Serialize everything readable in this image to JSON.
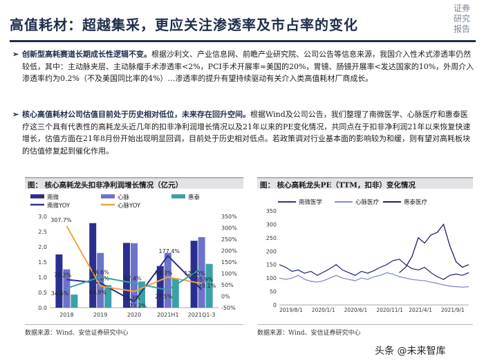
{
  "header": {
    "title": "高值耗材：超越集采，更应关注渗透率及市占率的变化",
    "brand_lines": [
      "证券",
      "研究",
      "报告"
    ]
  },
  "bullets": [
    {
      "lead": "创新型高耗赛道长期成长性逻辑不变。",
      "body": "根据沙利文、产业信息网、前瞻产业研究院、公司公告等信息来源，我国介入性术式渗透率仍然较低，其中：主动脉夹层、主动脉瘤手术渗透率<2%，PCI手术开展率≈美国的20%，胃镜、肠镜开展率<发达国家的10%，外周介入渗透率约为0.2%（不及美国同比率的4%）…渗透率的提升有望持续驱动有关介入类高值耗材厂商成长。"
    },
    {
      "lead": "核心高值耗材公司估值目前处于历史相对低位，未来存在回升空间。",
      "body": "根据Wind及公司公告，我们整理了南微医学、心脉医疗和惠泰医疗这三个具有代表性的高耗龙头近几年的扣非净利润增长情况以及21年以来的PE变化情况，共同点在于扣非净利润21年以来恢复快速增长，估值方面在21年8月份开始出现明显回调，目前处于历史相对低点。若政策调对行业基本面的影响较为和缓，则有望对高耗板块的估值修复起到催化作用。"
    }
  ],
  "left_panel": {
    "caption": "图： 核心高耗龙头扣非净利润增长情况（亿元）",
    "source": "数据来源：Wind、安信证券研究中心"
  },
  "right_panel": {
    "caption": "图： 核心高耗龙头PE（TTM，扣非）变化情况",
    "source": "数据来源：Wind、安信证券研究中心"
  },
  "watermark": "头条 @未来智库",
  "chart_data": [
    {
      "type": "bar",
      "title": "核心高耗龙头扣非净利润增长情况（亿元）",
      "categories": [
        "2018",
        "2019",
        "2020",
        "2021H1",
        "2021Q1-3"
      ],
      "ylim": [
        0,
        3.0
      ],
      "yticks": [
        "0.0",
        "0.5",
        "1.0",
        "1.5",
        "2.0",
        "2.5",
        "3.0"
      ],
      "y2lim": [
        -50,
        350
      ],
      "y2ticks": [
        "-50%",
        "0%",
        "50%",
        "100%",
        "150%",
        "200%",
        "250%",
        "300%",
        "350%"
      ],
      "colors": {
        "nanwei": "#2a2f8f",
        "xinmai": "#6d73c9",
        "huitai": "#3ba1a6",
        "nanwei_yoy": "#2a2f8f",
        "xinmai_yoy": "#f0a53a"
      },
      "series": [
        {
          "name": "南微",
          "kind": "bar",
          "values": [
            1.75,
            2.78,
            2.13,
            1.37,
            2.2
          ]
        },
        {
          "name": "心脉",
          "kind": "bar",
          "values": [
            1.26,
            1.8,
            2.12,
            1.8,
            2.32
          ]
        },
        {
          "name": "惠泰",
          "kind": "bar",
          "values": [
            0.43,
            0.74,
            0.86,
            0.97,
            1.44
          ]
        },
        {
          "name": "南微YOY",
          "kind": "line",
          "values": [
            73.2,
            58.0,
            -23.2,
            177.4,
            29.1
          ],
          "labels": [
            "73.2%",
            "58.0%",
            "-23.2%",
            "177.4%",
            "29.1%"
          ]
        },
        {
          "name": "心脉YOY",
          "kind": "line",
          "values": [
            307.7,
            44.9,
            21.3,
            84.3,
            55.9
          ],
          "labels": [
            "307.7%",
            "44.9%",
            "21.3%",
            "84.3%",
            "55.9%"
          ]
        },
        {
          "name": "惠泰YOY",
          "kind": "line",
          "values": [
            34.6,
            84.6,
            57.4,
            27.5,
            123.0
          ],
          "labels": [
            "34.6%",
            "84.6%",
            "57.4%",
            "27.5%",
            "123.0%"
          ]
        }
      ]
    },
    {
      "type": "line",
      "title": "核心高耗龙头PE（TTM，扣非）变化情况",
      "x_ticks": [
        "2019/8/1",
        "2020/1/1",
        "2020/6/1",
        "2020/11/1",
        "2021/4/1",
        "2021/9/1"
      ],
      "ylim": [
        0,
        350
      ],
      "yticks": [
        "0",
        "50",
        "100",
        "150",
        "200",
        "250",
        "300",
        "350"
      ],
      "colors": {
        "南微医学": "#2a2f8f",
        "心脉医疗": "#7c8bd6",
        "惠泰医疗": "#1b1f5e"
      },
      "series": [
        {
          "name": "南微医学",
          "values": [
            150,
            140,
            125,
            130,
            118,
            125,
            110,
            122,
            135,
            150,
            130,
            120,
            110,
            125,
            118,
            128,
            140,
            150,
            165,
            170,
            150,
            135,
            130,
            140,
            120,
            105,
            95,
            110,
            115,
            110,
            120
          ]
        },
        {
          "name": "心脉医疗",
          "values": [
            100,
            95,
            100,
            110,
            95,
            88,
            85,
            90,
            100,
            110,
            100,
            95,
            90,
            100,
            95,
            105,
            110,
            120,
            115,
            105,
            100,
            95,
            92,
            90,
            85,
            80,
            75,
            70,
            68,
            66,
            68
          ]
        },
        {
          "name": "惠泰医疗",
          "values": [
            null,
            null,
            null,
            null,
            null,
            null,
            null,
            null,
            null,
            null,
            null,
            null,
            null,
            null,
            null,
            null,
            null,
            null,
            null,
            120,
            140,
            180,
            250,
            230,
            260,
            270,
            300,
            220,
            160,
            140,
            150
          ]
        }
      ]
    }
  ]
}
